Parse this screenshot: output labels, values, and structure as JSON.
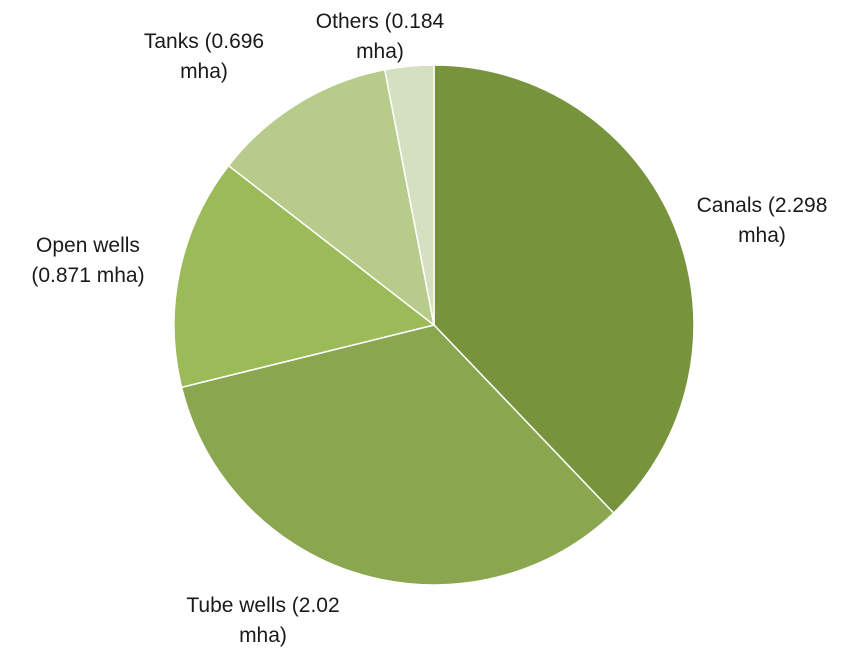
{
  "chart_data": {
    "type": "pie",
    "title": "",
    "slices": [
      {
        "label_lines": [
          "Canals (2.298",
          "mha)"
        ],
        "value": 2.298,
        "color": "#77933C"
      },
      {
        "label_lines": [
          "Tube wells (2.02",
          "mha)"
        ],
        "value": 2.02,
        "color": "#8AA64E"
      },
      {
        "label_lines": [
          "Open wells",
          "(0.871 mha)"
        ],
        "value": 0.871,
        "color": "#9BBB59"
      },
      {
        "label_lines": [
          "Tanks (0.696",
          "mha)"
        ],
        "value": 0.696,
        "color": "#B7CB8B"
      },
      {
        "label_lines": [
          "Others (0.184",
          "mha)"
        ],
        "value": 0.184,
        "color": "#D4E0C0"
      }
    ],
    "start_angle": "12 o'clock",
    "direction": "clockwise",
    "legend": "none",
    "data_labels": "outside"
  }
}
